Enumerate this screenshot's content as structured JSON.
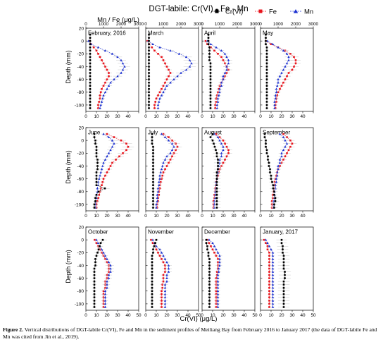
{
  "figure": {
    "title": "DGT-labile: Cr(VI) - Fe - Mn",
    "top_axis_label": "Mn / Fe (μg/L)",
    "bottom_axis_label": "Cr(VI) (μg/L)",
    "y_axis_label": "Depth (mm)",
    "caption_label": "Figure 2.",
    "caption_text": " Vertical distributions of DGT-labile Cr(VI), Fe and Mn in the sediment profiles of Meiliang Bay from February 2016 to January 2017 (the data of DGT-labile Fe and Mn was cited from Jin et al., 2019)."
  },
  "colors": {
    "cr": "#000000",
    "fe": "#e8141c",
    "mn": "#1a2fd1",
    "error_bar": "#c8c8c8"
  },
  "chart_data": {
    "type": "line",
    "legend": [
      {
        "name": "Cr(VI)",
        "marker": "square",
        "color": "#000000"
      },
      {
        "name": "Fe",
        "marker": "square",
        "color": "#e8141c"
      },
      {
        "name": "Mn",
        "marker": "triangle",
        "color": "#1a2fd1"
      }
    ],
    "legend_position": "top-right",
    "axes": {
      "y": {
        "label": "Depth (mm)",
        "range": [
          20,
          -110
        ],
        "ticks": [
          20,
          0,
          -20,
          -40,
          -60,
          -80,
          -100
        ]
      },
      "x_top": {
        "label": "Mn / Fe (μg/L)",
        "range": [
          0,
          3000
        ],
        "ticks": [
          0,
          1000,
          2000,
          3000
        ]
      },
      "x_bottom": {
        "label": "Cr(VI) (μg/L)",
        "range": [
          0,
          50
        ],
        "ticks": [
          0,
          10,
          20,
          30,
          40,
          50
        ]
      }
    },
    "depths": [
      10,
      5,
      0,
      -5,
      -10,
      -15,
      -20,
      -25,
      -30,
      -35,
      -40,
      -45,
      -50,
      -55,
      -60,
      -65,
      -70,
      -75,
      -80,
      -85,
      -90,
      -95,
      -100,
      -105
    ],
    "panels": [
      {
        "label": "February, 2016",
        "cr": [
          4,
          4,
          4,
          4,
          4,
          4,
          4,
          4,
          4,
          4,
          4,
          4,
          4,
          4,
          4,
          4,
          4,
          4,
          4,
          4,
          4,
          4,
          4,
          4
        ],
        "fe": [
          null,
          null,
          200,
          300,
          450,
          600,
          700,
          800,
          900,
          1000,
          1100,
          1200,
          1300,
          1300,
          1200,
          1100,
          1000,
          900,
          850,
          800,
          800,
          750,
          700,
          700
        ],
        "mn": [
          null,
          null,
          150,
          300,
          700,
          1100,
          1500,
          1800,
          2000,
          2100,
          2200,
          2100,
          2000,
          1800,
          1600,
          1400,
          1300,
          1200,
          1100,
          1000,
          950,
          900,
          850,
          800
        ]
      },
      {
        "label": "March",
        "cr": [
          3,
          3,
          3,
          3,
          3,
          3,
          3,
          3,
          3,
          3,
          3,
          3,
          3,
          3,
          3,
          3,
          3,
          3,
          3,
          3,
          3,
          3,
          3,
          3
        ],
        "fe": [
          null,
          null,
          100,
          200,
          350,
          500,
          700,
          900,
          1000,
          1100,
          1200,
          1300,
          1400,
          1300,
          1200,
          1100,
          1000,
          900,
          800,
          700,
          600,
          550,
          500,
          500
        ],
        "mn": [
          null,
          null,
          150,
          400,
          800,
          1400,
          1900,
          2300,
          2500,
          2600,
          2500,
          2300,
          2000,
          1800,
          1600,
          1400,
          1200,
          1100,
          1000,
          900,
          800,
          750,
          700,
          700
        ]
      },
      {
        "label": "April",
        "cr": [
          6,
          6,
          6,
          6,
          7,
          7,
          7,
          7,
          7,
          8,
          8,
          8,
          8,
          8,
          8,
          8,
          8,
          8,
          8,
          8,
          8,
          8,
          8,
          8
        ],
        "fe": [
          null,
          null,
          200,
          300,
          500,
          700,
          900,
          1100,
          1200,
          1300,
          1400,
          1500,
          1400,
          1300,
          1200,
          1100,
          1000,
          950,
          900,
          850,
          800,
          800,
          750,
          750
        ],
        "mn": [
          null,
          null,
          300,
          500,
          800,
          1100,
          1300,
          1400,
          1500,
          1500,
          1400,
          1400,
          1300,
          1200,
          1200,
          1100,
          1100,
          1000,
          1000,
          950,
          900,
          900,
          850,
          850
        ]
      },
      {
        "label": "May",
        "cr": [
          5,
          5,
          5,
          5,
          6,
          6,
          6,
          6,
          6,
          6,
          6,
          6,
          6,
          6,
          6,
          6,
          6,
          6,
          6,
          6,
          6,
          6,
          6,
          6
        ],
        "fe": [
          null,
          null,
          300,
          600,
          1000,
          1400,
          1700,
          1900,
          2000,
          2000,
          1900,
          1800,
          1600,
          1500,
          1400,
          1300,
          1200,
          1100,
          1000,
          950,
          900,
          900,
          850,
          850
        ],
        "mn": [
          null,
          null,
          400,
          700,
          1000,
          1300,
          1500,
          1600,
          1600,
          1500,
          1400,
          1300,
          1200,
          1100,
          1000,
          1000,
          950,
          900,
          900,
          850,
          850,
          800,
          800,
          800
        ]
      },
      {
        "label": "June",
        "cr": [
          8,
          8,
          9,
          9,
          10,
          10,
          10,
          10,
          11,
          11,
          11,
          11,
          10,
          10,
          10,
          10,
          10,
          18,
          12,
          10,
          9,
          9,
          8,
          8
        ],
        "fe": [
          1200,
          1600,
          2000,
          2300,
          2400,
          2300,
          2100,
          1900,
          1700,
          1500,
          1400,
          1300,
          1200,
          1100,
          1000,
          950,
          900,
          850,
          800,
          750,
          700,
          650,
          600,
          600
        ],
        "mn": [
          1000,
          1300,
          1500,
          1600,
          1500,
          1400,
          1300,
          1200,
          1100,
          1000,
          950,
          900,
          850,
          800,
          750,
          700,
          700,
          650,
          650,
          600,
          600,
          550,
          550,
          550
        ]
      },
      {
        "label": "July",
        "cr": [
          6,
          6,
          6,
          6,
          7,
          7,
          7,
          7,
          7,
          7,
          7,
          7,
          7,
          7,
          7,
          7,
          7,
          7,
          7,
          7,
          7,
          7,
          7,
          7
        ],
        "fe": [
          1000,
          1300,
          1500,
          1700,
          1800,
          1700,
          1600,
          1500,
          1400,
          1300,
          1200,
          1100,
          1000,
          950,
          900,
          850,
          800,
          800,
          750,
          750,
          700,
          700,
          650,
          650
        ],
        "mn": [
          900,
          1100,
          1300,
          1500,
          1600,
          1500,
          1400,
          1200,
          1100,
          1000,
          950,
          900,
          850,
          800,
          800,
          750,
          750,
          700,
          700,
          650,
          650,
          650,
          600,
          600
        ]
      },
      {
        "label": "August",
        "cr": [
          10,
          8,
          10,
          11,
          12,
          13,
          14,
          14,
          15,
          15,
          15,
          15,
          14,
          14,
          14,
          14,
          14,
          14,
          14,
          14,
          14,
          14,
          14,
          14
        ],
        "fe": [
          800,
          1000,
          1200,
          1300,
          1400,
          1500,
          1500,
          1400,
          1300,
          1200,
          1100,
          1000,
          950,
          900,
          850,
          800,
          800,
          750,
          750,
          700,
          700,
          650,
          650,
          650
        ],
        "mn": [
          700,
          900,
          1000,
          1100,
          1200,
          1200,
          1100,
          1100,
          1000,
          1000,
          950,
          900,
          900,
          850,
          850,
          800,
          800,
          800,
          750,
          750,
          750,
          700,
          700,
          700
        ]
      },
      {
        "label": "September",
        "cr": [
          4,
          4,
          5,
          5,
          5,
          6,
          6,
          7,
          7,
          8,
          8,
          9,
          9,
          10,
          10,
          11,
          12,
          12,
          13,
          13,
          14,
          14,
          13,
          13
        ],
        "fe": [
          1300,
          1500,
          1700,
          1800,
          1700,
          1600,
          1500,
          1400,
          1300,
          1200,
          1100,
          1000,
          950,
          900,
          850,
          800,
          800,
          750,
          750,
          700,
          700,
          650,
          650,
          650
        ],
        "mn": [
          1100,
          1300,
          1400,
          1500,
          1400,
          1300,
          1200,
          1200,
          1100,
          1100,
          1000,
          1000,
          950,
          950,
          900,
          900,
          850,
          850,
          800,
          800,
          800,
          750,
          750,
          750
        ]
      },
      {
        "label": "October",
        "cr": [
          null,
          null,
          16,
          14,
          13,
          12,
          11,
          10,
          9,
          9,
          9,
          8,
          8,
          8,
          8,
          8,
          8,
          8,
          8,
          8,
          8,
          8,
          8,
          8
        ],
        "fe": [
          null,
          null,
          500,
          600,
          700,
          800,
          900,
          1000,
          1100,
          1200,
          1300,
          1300,
          1300,
          1200,
          1200,
          1100,
          1100,
          1100,
          1000,
          1000,
          1000,
          1000,
          1000,
          1000
        ],
        "mn": [
          null,
          null,
          600,
          700,
          800,
          900,
          1000,
          1100,
          1200,
          1300,
          1400,
          1400,
          1400,
          1300,
          1300,
          1200,
          1200,
          1200,
          1100,
          1100,
          1100,
          1100,
          1100,
          1100
        ]
      },
      {
        "label": "November",
        "cr": [
          null,
          null,
          10,
          9,
          8,
          7,
          7,
          6,
          6,
          6,
          6,
          6,
          6,
          6,
          6,
          6,
          6,
          6,
          6,
          6,
          6,
          6,
          6,
          6
        ],
        "fe": [
          null,
          null,
          300,
          400,
          500,
          600,
          700,
          800,
          900,
          1000,
          1100,
          1100,
          1100,
          1000,
          1000,
          1000,
          950,
          950,
          900,
          900,
          900,
          900,
          900,
          900
        ],
        "mn": [
          null,
          null,
          400,
          500,
          600,
          800,
          900,
          1000,
          1100,
          1200,
          1300,
          1300,
          1300,
          1200,
          1200,
          1200,
          1100,
          1100,
          1100,
          1100,
          1100,
          1100,
          1100,
          1100
        ]
      },
      {
        "label": "December",
        "cr": [
          null,
          null,
          4,
          4,
          5,
          5,
          6,
          6,
          7,
          7,
          7,
          7,
          7,
          7,
          7,
          7,
          7,
          7,
          7,
          7,
          7,
          7,
          7,
          7
        ],
        "fe": [
          null,
          null,
          300,
          400,
          500,
          600,
          700,
          800,
          900,
          900,
          900,
          900,
          850,
          850,
          800,
          800,
          800,
          800,
          800,
          800,
          800,
          800,
          800,
          800
        ],
        "mn": [
          null,
          null,
          400,
          600,
          700,
          800,
          900,
          1000,
          1000,
          1000,
          1000,
          950,
          950,
          900,
          900,
          900,
          900,
          900,
          900,
          900,
          900,
          900,
          900,
          900
        ]
      },
      {
        "label": "January, 2017",
        "cr": [
          null,
          null,
          20,
          20,
          21,
          21,
          21,
          22,
          22,
          22,
          22,
          22,
          23,
          23,
          23,
          22,
          22,
          22,
          22,
          22,
          22,
          22,
          22,
          22
        ],
        "fe": [
          null,
          null,
          200,
          300,
          400,
          400,
          500,
          500,
          500,
          500,
          500,
          500,
          500,
          500,
          500,
          500,
          500,
          500,
          500,
          500,
          500,
          500,
          500,
          500
        ],
        "mn": [
          null,
          null,
          300,
          400,
          500,
          600,
          700,
          700,
          700,
          700,
          700,
          700,
          700,
          700,
          700,
          700,
          700,
          700,
          700,
          700,
          700,
          700,
          700,
          700
        ]
      }
    ]
  }
}
